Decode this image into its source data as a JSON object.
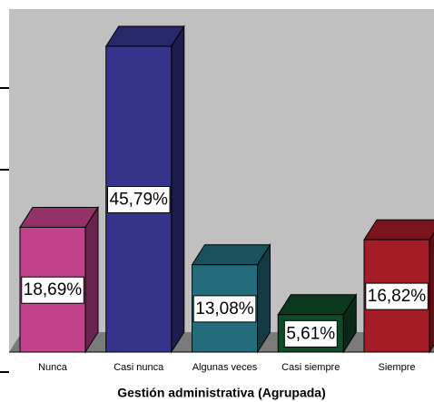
{
  "chart_data": {
    "type": "bar3d",
    "x_label": "Gestión administrativa (Agrupada)",
    "categories": [
      "Nunca",
      "Casi nunca",
      "Algunas veces",
      "Casi siempre",
      "Siempre"
    ],
    "values": [
      18.69,
      45.79,
      13.08,
      5.61,
      16.82
    ],
    "value_labels": [
      "18,69%",
      "45,79%",
      "13,08%",
      "5,61%",
      "16,82%"
    ],
    "colors": [
      "#c2428c",
      "#34348c",
      "#246c7c",
      "#0e4c28",
      "#a31c26"
    ],
    "ylim": [
      0,
      50
    ]
  }
}
